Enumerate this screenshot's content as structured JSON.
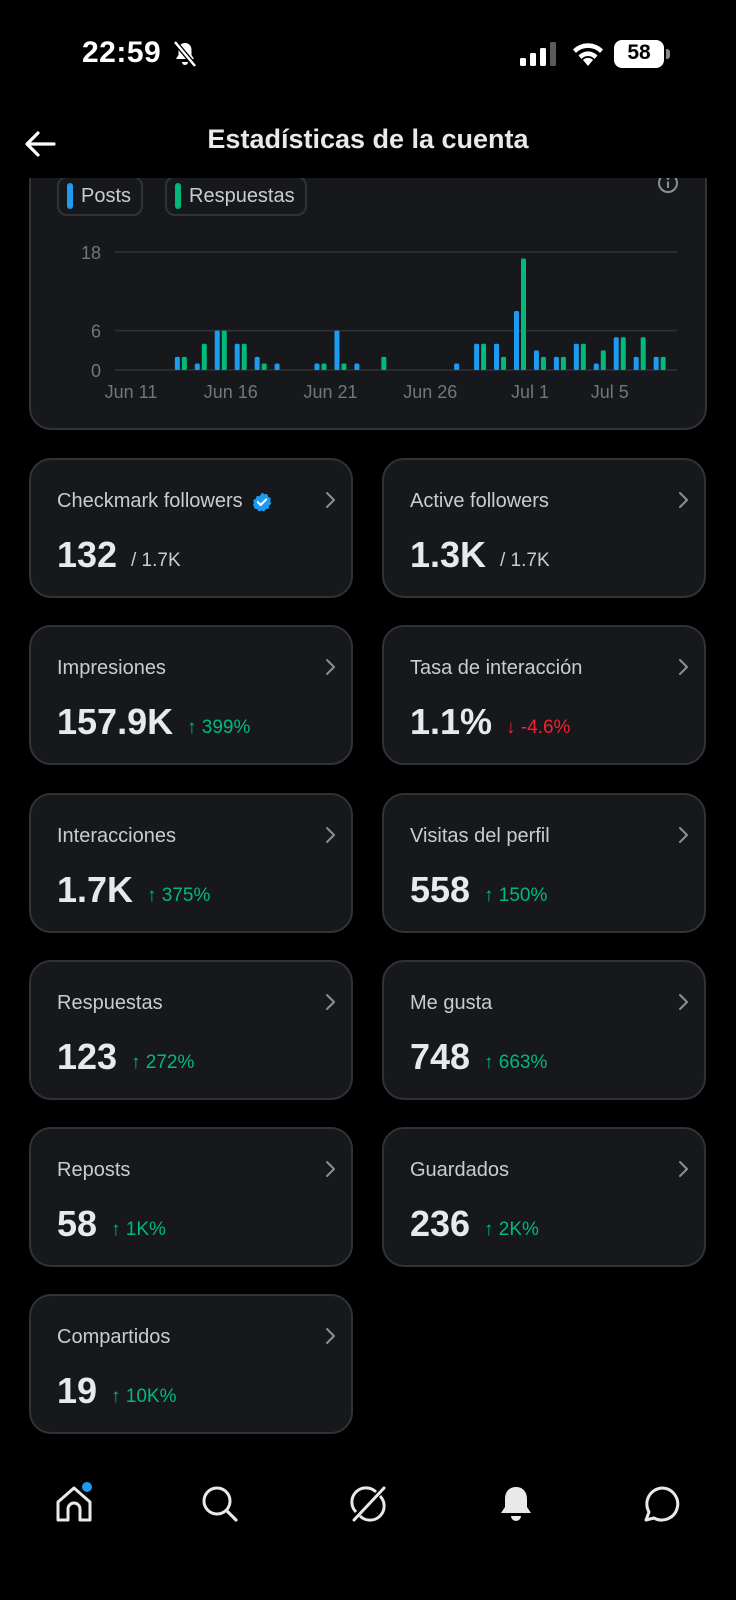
{
  "status_bar": {
    "time": "22:59",
    "battery": "58"
  },
  "header": {
    "title": "Estadísticas de la cuenta"
  },
  "chart_data": {
    "type": "bar",
    "legend": [
      "Posts",
      "Respuestas"
    ],
    "colors": {
      "posts": "#1d9bf0",
      "replies": "#00ba7c"
    },
    "yticks": [
      0,
      6,
      18
    ],
    "ylim": [
      0,
      18
    ],
    "xticks": [
      "Jun 11",
      "Jun 16",
      "Jun 21",
      "Jun 26",
      "Jul 1",
      "Jul 5"
    ],
    "categories": [
      "Jun 11",
      "Jun 12",
      "Jun 13",
      "Jun 14",
      "Jun 15",
      "Jun 16",
      "Jun 17",
      "Jun 18",
      "Jun 19",
      "Jun 20",
      "Jun 21",
      "Jun 22",
      "Jun 23",
      "Jun 24",
      "Jun 25",
      "Jun 26",
      "Jun 27",
      "Jun 28",
      "Jun 29",
      "Jun 30",
      "Jul 1",
      "Jul 2",
      "Jul 3",
      "Jul 4",
      "Jul 5",
      "Jul 6",
      "Jul 7",
      "Jul 8"
    ],
    "series": [
      {
        "name": "Posts",
        "values": [
          0,
          0,
          0,
          2,
          1,
          6,
          4,
          2,
          1,
          0,
          1,
          6,
          1,
          0,
          0,
          0,
          0,
          1,
          4,
          4,
          9,
          3,
          2,
          4,
          1,
          5,
          2,
          2
        ]
      },
      {
        "name": "Respuestas",
        "values": [
          0,
          0,
          0,
          2,
          4,
          6,
          4,
          1,
          0,
          0,
          1,
          1,
          0,
          2,
          0,
          0,
          0,
          0,
          4,
          2,
          17,
          2,
          2,
          4,
          3,
          5,
          5,
          2
        ]
      }
    ]
  },
  "stats": [
    {
      "label": "Checkmark followers",
      "value": "132",
      "sub": "/ 1.7K",
      "sub_type": "total",
      "verified": true
    },
    {
      "label": "Active followers",
      "value": "1.3K",
      "sub": "/ 1.7K",
      "sub_type": "total"
    },
    {
      "label": "Impresiones",
      "value": "157.9K",
      "sub": "↑ 399%",
      "sub_type": "up"
    },
    {
      "label": "Tasa de interacción",
      "value": "1.1%",
      "sub": "↓ -4.6%",
      "sub_type": "down"
    },
    {
      "label": "Interacciones",
      "value": "1.7K",
      "sub": "↑ 375%",
      "sub_type": "up"
    },
    {
      "label": "Visitas del perfil",
      "value": "558",
      "sub": "↑ 150%",
      "sub_type": "up"
    },
    {
      "label": "Respuestas",
      "value": "123",
      "sub": "↑ 272%",
      "sub_type": "up"
    },
    {
      "label": "Me gusta",
      "value": "748",
      "sub": "↑ 663%",
      "sub_type": "up"
    },
    {
      "label": "Reposts",
      "value": "58",
      "sub": "↑ 1K%",
      "sub_type": "up"
    },
    {
      "label": "Guardados",
      "value": "236",
      "sub": "↑ 2K%",
      "sub_type": "up"
    },
    {
      "label": "Compartidos",
      "value": "19",
      "sub": "↑ 10K%",
      "sub_type": "up"
    }
  ],
  "nav": {
    "items": [
      "home-icon",
      "search-icon",
      "grok-icon",
      "notifications-icon",
      "messages-icon"
    ],
    "home_has_dot": true
  }
}
